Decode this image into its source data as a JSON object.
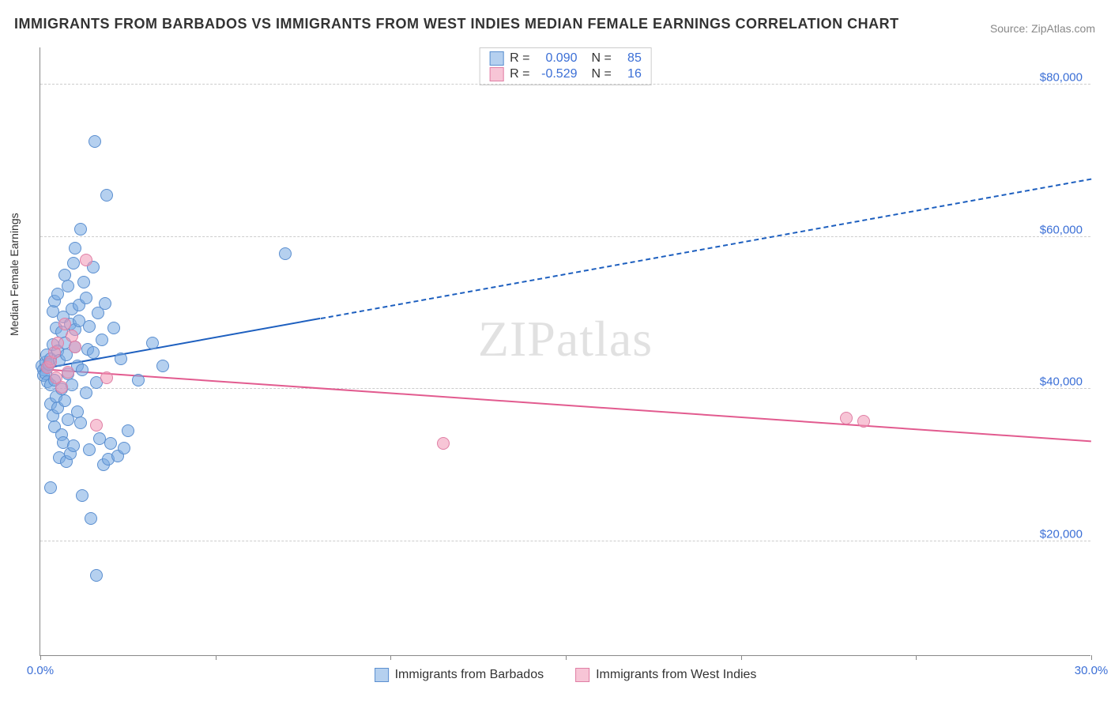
{
  "title": "IMMIGRANTS FROM BARBADOS VS IMMIGRANTS FROM WEST INDIES MEDIAN FEMALE EARNINGS CORRELATION CHART",
  "source": "Source: ZipAtlas.com",
  "ylabel": "Median Female Earnings",
  "watermark_bold": "ZIP",
  "watermark_thin": "atlas",
  "chart": {
    "type": "scatter",
    "xlim": [
      0,
      30
    ],
    "ylim": [
      5000,
      85000
    ],
    "background_color": "#ffffff",
    "grid_color": "#cccccc",
    "ytick_values": [
      20000,
      40000,
      60000,
      80000
    ],
    "ytick_labels": [
      "$20,000",
      "$40,000",
      "$60,000",
      "$80,000"
    ],
    "xtick_values": [
      0,
      5,
      10,
      15,
      20,
      25,
      30
    ],
    "xtick_label_left": "0.0%",
    "xtick_label_right": "30.0%",
    "marker_radius": 8,
    "series": [
      {
        "name": "Immigrants from Barbados",
        "fill": "rgba(120,170,225,0.55)",
        "stroke": "#5b8fd0",
        "R_label": "R =",
        "R_value": "0.090",
        "N_label": "N =",
        "N_value": "85",
        "regression": {
          "x1": 0,
          "y1": 42500,
          "x2": 30,
          "y2": 67500,
          "xdata_max": 8,
          "color": "#1d5fbf",
          "width": 2
        },
        "points": [
          [
            0.05,
            43000
          ],
          [
            0.1,
            42500
          ],
          [
            0.1,
            41800
          ],
          [
            0.15,
            43500
          ],
          [
            0.15,
            42000
          ],
          [
            0.18,
            44500
          ],
          [
            0.2,
            42800
          ],
          [
            0.2,
            41000
          ],
          [
            0.25,
            43200
          ],
          [
            0.3,
            40500
          ],
          [
            0.3,
            44000
          ],
          [
            0.3,
            38000
          ],
          [
            0.35,
            45800
          ],
          [
            0.35,
            50200
          ],
          [
            0.35,
            36500
          ],
          [
            0.4,
            35000
          ],
          [
            0.4,
            51500
          ],
          [
            0.4,
            41200
          ],
          [
            0.45,
            48000
          ],
          [
            0.45,
            39000
          ],
          [
            0.5,
            45000
          ],
          [
            0.5,
            37500
          ],
          [
            0.5,
            52500
          ],
          [
            0.55,
            43800
          ],
          [
            0.55,
            31000
          ],
          [
            0.6,
            47500
          ],
          [
            0.6,
            34000
          ],
          [
            0.6,
            40000
          ],
          [
            0.65,
            49500
          ],
          [
            0.65,
            33000
          ],
          [
            0.7,
            46000
          ],
          [
            0.7,
            38500
          ],
          [
            0.7,
            55000
          ],
          [
            0.75,
            44500
          ],
          [
            0.75,
            30500
          ],
          [
            0.8,
            42000
          ],
          [
            0.8,
            53500
          ],
          [
            0.8,
            36000
          ],
          [
            0.85,
            48500
          ],
          [
            0.85,
            31500
          ],
          [
            0.9,
            50500
          ],
          [
            0.9,
            40500
          ],
          [
            0.95,
            56500
          ],
          [
            0.95,
            32500
          ],
          [
            1.0,
            45500
          ],
          [
            1.0,
            47800
          ],
          [
            1.0,
            58500
          ],
          [
            1.05,
            37000
          ],
          [
            1.05,
            43000
          ],
          [
            1.1,
            51000
          ],
          [
            1.1,
            49000
          ],
          [
            1.15,
            61000
          ],
          [
            1.15,
            35500
          ],
          [
            1.2,
            26000
          ],
          [
            1.2,
            42500
          ],
          [
            1.25,
            54000
          ],
          [
            1.3,
            39500
          ],
          [
            1.3,
            52000
          ],
          [
            1.35,
            45200
          ],
          [
            1.4,
            32000
          ],
          [
            1.4,
            48200
          ],
          [
            1.45,
            23000
          ],
          [
            1.5,
            44800
          ],
          [
            1.5,
            56000
          ],
          [
            1.55,
            72500
          ],
          [
            1.6,
            40800
          ],
          [
            1.65,
            50000
          ],
          [
            1.7,
            33500
          ],
          [
            1.75,
            46500
          ],
          [
            1.8,
            30000
          ],
          [
            1.85,
            51200
          ],
          [
            1.9,
            65500
          ],
          [
            1.95,
            30800
          ],
          [
            2.0,
            32800
          ],
          [
            2.1,
            48000
          ],
          [
            2.2,
            31200
          ],
          [
            2.3,
            44000
          ],
          [
            2.4,
            32200
          ],
          [
            2.5,
            34500
          ],
          [
            2.8,
            41200
          ],
          [
            3.2,
            46000
          ],
          [
            3.5,
            43000
          ],
          [
            1.6,
            15500
          ],
          [
            7.0,
            57800
          ],
          [
            0.3,
            27000
          ]
        ]
      },
      {
        "name": "Immigrants from West Indies",
        "fill": "rgba(240,150,180,0.55)",
        "stroke": "#e07fa5",
        "R_label": "R =",
        "R_value": "-0.529",
        "N_label": "N =",
        "N_value": "16",
        "regression": {
          "x1": 0,
          "y1": 42500,
          "x2": 30,
          "y2": 33000,
          "xdata_max": 30,
          "color": "#e25b8f",
          "width": 2
        },
        "points": [
          [
            0.2,
            42800
          ],
          [
            0.3,
            43500
          ],
          [
            0.4,
            44800
          ],
          [
            0.45,
            41500
          ],
          [
            0.5,
            46000
          ],
          [
            0.6,
            40200
          ],
          [
            0.7,
            48500
          ],
          [
            0.8,
            42200
          ],
          [
            0.9,
            47000
          ],
          [
            1.0,
            45500
          ],
          [
            1.3,
            57000
          ],
          [
            1.6,
            35200
          ],
          [
            1.9,
            41500
          ],
          [
            11.5,
            32800
          ],
          [
            23.0,
            36200
          ],
          [
            23.5,
            35800
          ]
        ]
      }
    ]
  },
  "legend_bottom": [
    {
      "label": "Immigrants from Barbados",
      "fill": "rgba(120,170,225,0.55)",
      "stroke": "#5b8fd0"
    },
    {
      "label": "Immigrants from West Indies",
      "fill": "rgba(240,150,180,0.55)",
      "stroke": "#e07fa5"
    }
  ]
}
